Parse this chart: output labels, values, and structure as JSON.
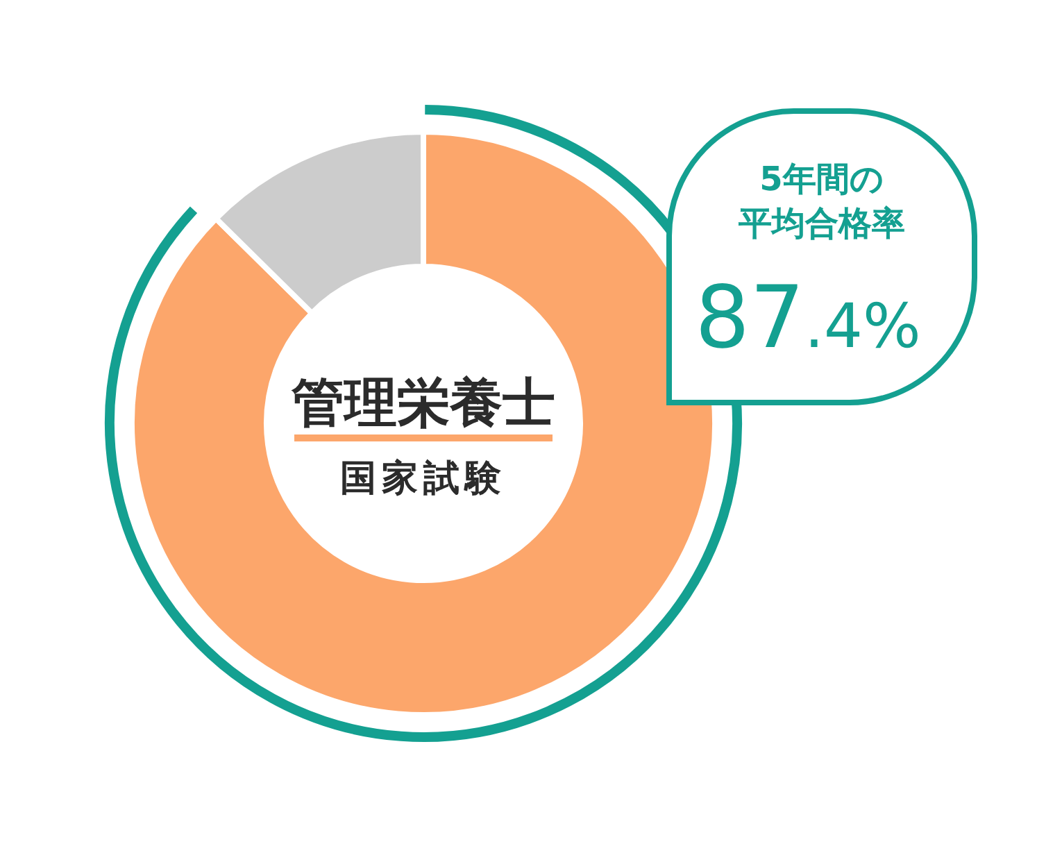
{
  "chart_data": {
    "type": "donut",
    "title": "管理栄養士",
    "subtitle": "国家試験",
    "categories": [
      null,
      null
    ],
    "values": [
      87.4,
      12.6
    ],
    "colors": [
      "#fca66b",
      "#cccccc"
    ],
    "value_labels": [
      "87.4%",
      null
    ],
    "annotations": [
      "5年間の",
      "平均合格率"
    ]
  }
}
